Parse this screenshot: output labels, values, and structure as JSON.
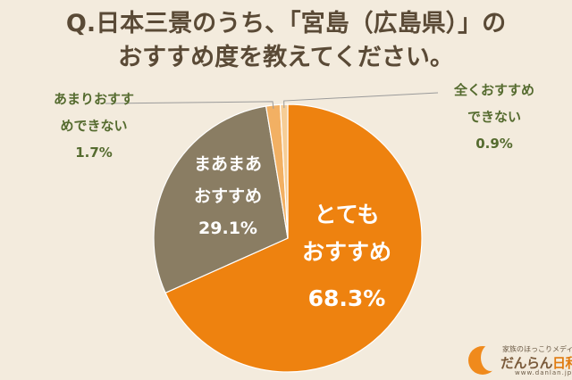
{
  "title_lines": [
    "Q.日本三景のうち、「宮島（広島県）」の",
    "おすすめ度を教えてください。"
  ],
  "chart_data": {
    "type": "pie",
    "title": "Q.日本三景のうち、「宮島（広島県）」のおすすめ度を教えてください。",
    "slices": [
      {
        "label_lines": [
          "とても",
          "おすすめ"
        ],
        "value": 68.3,
        "value_text": "68.3%",
        "color": "#ee820f"
      },
      {
        "label_lines": [
          "まあまあ",
          "おすすめ"
        ],
        "value": 29.1,
        "value_text": "29.1%",
        "color": "#8a7d63"
      },
      {
        "label_lines": [
          "あまりおすす",
          "めできない"
        ],
        "value": 1.7,
        "value_text": "1.7%",
        "color": "#f2b063"
      },
      {
        "label_lines": [
          "全くおすすめ",
          "できない"
        ],
        "value": 0.9,
        "value_text": "0.9%",
        "color": "#f6cd96"
      }
    ]
  },
  "logo": {
    "tagline": "家族のほっこりメディア",
    "name_main": "だんらん",
    "name_accent": "日和",
    "url": "www.danlan.jp"
  }
}
